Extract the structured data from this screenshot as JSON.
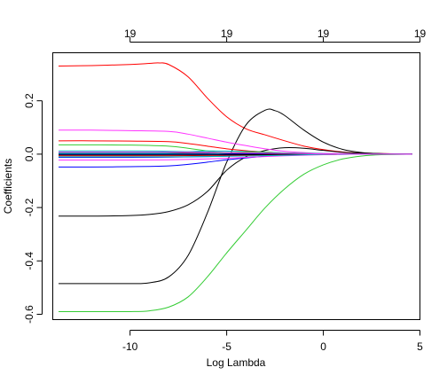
{
  "chart_data": {
    "type": "line",
    "title": "",
    "xlabel": "Log Lambda",
    "ylabel": "Coefficients",
    "xlim": [
      -14,
      5
    ],
    "ylim": [
      -0.62,
      0.38
    ],
    "x_ticks": [
      -10,
      -5,
      0,
      5
    ],
    "y_ticks": [
      -0.6,
      -0.4,
      -0.2,
      0.0,
      0.2
    ],
    "x_tick_labels": [
      "-10",
      "-5",
      "0",
      "5"
    ],
    "y_tick_labels": [
      "-0.6",
      "-0.4",
      "-0.2",
      "0.0",
      "0.2"
    ],
    "top_axis": {
      "ticks": [
        -10,
        -5,
        0,
        5
      ],
      "labels": [
        "19",
        "19",
        "19",
        "19"
      ]
    },
    "grid": false,
    "legend": "none",
    "series": [
      {
        "color": "#ff0000",
        "x": [
          -13.7,
          -12,
          -10,
          -9,
          -8.5,
          -8,
          -7,
          -6,
          -5,
          -4,
          -3,
          -2,
          -1,
          0,
          1,
          2,
          3,
          4,
          4.6
        ],
        "y": [
          0.33,
          0.332,
          0.336,
          0.34,
          0.342,
          0.336,
          0.29,
          0.21,
          0.14,
          0.095,
          0.072,
          0.05,
          0.03,
          0.017,
          0.008,
          0.004,
          0.002,
          0.001,
          0.0
        ]
      },
      {
        "color": "#000000",
        "x": [
          -13.7,
          -12,
          -10,
          -9,
          -8,
          -7,
          -6,
          -5,
          -4,
          -3,
          -2.5,
          -2,
          -1,
          0,
          1,
          2,
          3,
          4,
          4.6
        ],
        "y": [
          -0.485,
          -0.485,
          -0.485,
          -0.482,
          -0.46,
          -0.38,
          -0.22,
          -0.03,
          0.11,
          0.165,
          0.163,
          0.145,
          0.09,
          0.045,
          0.018,
          0.006,
          0.002,
          0.001,
          0.0
        ]
      },
      {
        "color": "#000000",
        "x": [
          -13.7,
          -12,
          -10,
          -9,
          -8,
          -7,
          -6,
          -5,
          -4,
          -3,
          -2,
          -1,
          0,
          1,
          2,
          3,
          4,
          4.6
        ],
        "y": [
          -0.232,
          -0.232,
          -0.23,
          -0.226,
          -0.215,
          -0.19,
          -0.14,
          -0.06,
          -0.01,
          0.014,
          0.024,
          0.022,
          0.014,
          0.007,
          0.003,
          0.001,
          0.0,
          0.0
        ]
      },
      {
        "color": "#33cc33",
        "x": [
          -13.7,
          -12,
          -10,
          -9,
          -8,
          -7,
          -6,
          -5,
          -4,
          -3,
          -2,
          -1,
          0,
          1,
          2,
          3,
          4,
          4.6
        ],
        "y": [
          -0.59,
          -0.59,
          -0.59,
          -0.587,
          -0.573,
          -0.535,
          -0.46,
          -0.37,
          -0.285,
          -0.2,
          -0.13,
          -0.075,
          -0.04,
          -0.018,
          -0.007,
          -0.002,
          -0.001,
          0.0
        ]
      },
      {
        "color": "#ff33ff",
        "x": [
          -13.7,
          -12,
          -10,
          -8,
          -7,
          -6,
          -5,
          -4,
          -3,
          -2,
          -1,
          0,
          2,
          4.6
        ],
        "y": [
          0.09,
          0.09,
          0.088,
          0.085,
          0.075,
          0.06,
          0.045,
          0.032,
          0.02,
          0.011,
          0.006,
          0.003,
          0.001,
          0.0
        ]
      },
      {
        "color": "#ff0000",
        "x": [
          -13.7,
          -12,
          -10,
          -8,
          -7,
          -6,
          -5,
          -4,
          -3,
          -2,
          -1,
          0,
          2,
          4.6
        ],
        "y": [
          0.05,
          0.05,
          0.049,
          0.047,
          0.04,
          0.03,
          0.02,
          0.013,
          0.008,
          0.004,
          0.002,
          0.001,
          0.0,
          0.0
        ]
      },
      {
        "color": "#33cc33",
        "x": [
          -13.7,
          -12,
          -10,
          -8,
          -7,
          -6,
          -5,
          -4,
          -3,
          -2,
          0,
          2,
          4.6
        ],
        "y": [
          0.035,
          0.035,
          0.034,
          0.03,
          0.022,
          0.012,
          0.005,
          0.002,
          0.001,
          0.0,
          0.0,
          0.0,
          0.0
        ]
      },
      {
        "color": "#0000ff",
        "x": [
          -13.7,
          -12,
          -10,
          -8,
          -7,
          -6,
          -5,
          -4,
          -3,
          -2,
          -1,
          0,
          2,
          4.6
        ],
        "y": [
          -0.048,
          -0.048,
          -0.047,
          -0.044,
          -0.038,
          -0.03,
          -0.021,
          -0.014,
          -0.008,
          -0.004,
          -0.002,
          -0.001,
          0.0,
          0.0
        ]
      },
      {
        "color": "#00bbbb",
        "x": [
          -13.7,
          -10,
          -8,
          -6,
          -4,
          -2,
          0,
          2,
          4.6
        ],
        "y": [
          0.012,
          0.012,
          0.011,
          0.008,
          0.005,
          0.003,
          0.001,
          0.0,
          0.0
        ]
      },
      {
        "color": "#0000ff",
        "x": [
          -13.7,
          -10,
          -8,
          -6,
          -4,
          -2,
          0,
          2,
          4.6
        ],
        "y": [
          -0.012,
          -0.012,
          -0.011,
          -0.009,
          -0.006,
          -0.003,
          -0.001,
          0.0,
          0.0
        ]
      },
      {
        "color": "#000000",
        "x": [
          -13.7,
          -10,
          -8,
          -6,
          -4,
          -2,
          0,
          2,
          4.6
        ],
        "y": [
          0.004,
          0.004,
          0.004,
          0.003,
          0.002,
          0.001,
          0.0,
          0.0,
          0.0
        ]
      },
      {
        "color": "#ff33ff",
        "x": [
          -13.7,
          -10,
          -8,
          -6,
          -4,
          -2,
          0,
          2,
          4.6
        ],
        "y": [
          -0.022,
          -0.022,
          -0.021,
          -0.018,
          -0.012,
          -0.006,
          -0.002,
          0.0,
          0.0
        ]
      },
      {
        "color": "#00bbbb",
        "x": [
          -13.7,
          -10,
          -8,
          -6,
          -4,
          -2,
          0,
          2,
          4.6
        ],
        "y": [
          0.005,
          0.005,
          0.006,
          0.012,
          0.01,
          0.005,
          0.002,
          0.0,
          0.0
        ]
      },
      {
        "color": "#ff0000",
        "x": [
          -13.7,
          -10,
          -8,
          -6,
          -4,
          -2,
          0,
          2,
          4.6
        ],
        "y": [
          -0.006,
          -0.006,
          -0.006,
          -0.005,
          -0.004,
          -0.002,
          -0.001,
          0.0,
          0.0
        ]
      },
      {
        "color": "#33cc33",
        "x": [
          -13.7,
          -10,
          -8,
          -6,
          -4,
          -2,
          0,
          2,
          4.6
        ],
        "y": [
          0.002,
          0.002,
          0.002,
          0.001,
          0.008,
          0.004,
          0.001,
          0.0,
          0.0
        ]
      },
      {
        "color": "#0000ff",
        "x": [
          -13.7,
          -10,
          -8,
          -6,
          -4,
          -2,
          0,
          2,
          4.6
        ],
        "y": [
          0.0,
          0.0,
          0.0,
          0.0,
          0.0,
          0.0,
          0.0,
          0.0,
          0.0
        ]
      },
      {
        "color": "#000000",
        "x": [
          -13.7,
          -10,
          -8,
          -6,
          -4,
          -2,
          0,
          2,
          4.6
        ],
        "y": [
          -0.003,
          -0.003,
          -0.003,
          -0.003,
          -0.002,
          -0.001,
          0.0,
          0.0,
          0.0
        ]
      },
      {
        "color": "#00bbbb",
        "x": [
          -13.7,
          -10,
          -8,
          -6,
          -4,
          -2,
          0,
          2,
          4.6
        ],
        "y": [
          -0.01,
          -0.01,
          -0.01,
          -0.009,
          -0.007,
          -0.004,
          -0.001,
          0.0,
          0.0
        ]
      },
      {
        "color": "#ff33ff",
        "x": [
          -13.7,
          -10,
          -8,
          -6,
          -4,
          -2,
          0,
          2,
          4.6
        ],
        "y": [
          0.008,
          0.008,
          0.008,
          0.007,
          0.005,
          0.003,
          0.001,
          0.0,
          0.0
        ]
      }
    ]
  }
}
